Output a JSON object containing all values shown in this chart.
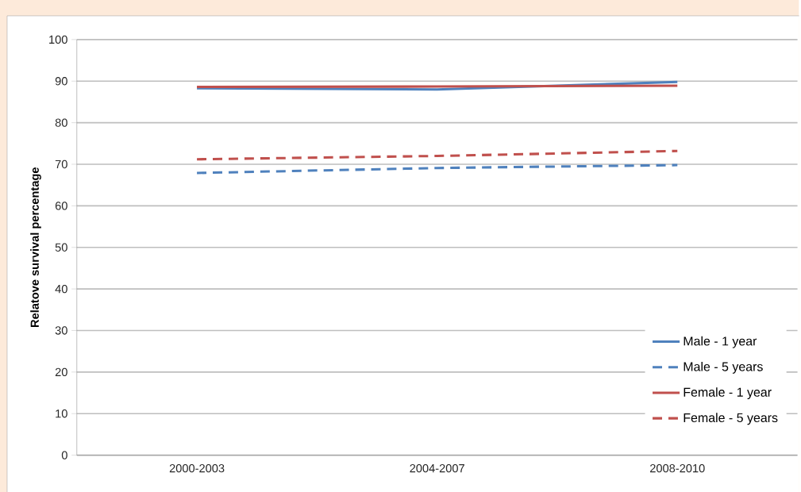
{
  "chart_data": {
    "type": "line",
    "ylabel": "Relatove survival percentage",
    "categories": [
      "2000-2003",
      "2004-2007",
      "2008-2010"
    ],
    "series": [
      {
        "name": "Male - 1 year",
        "color": "#4f81bd",
        "line_style": "solid",
        "values": [
          88.3,
          88.0,
          89.8
        ]
      },
      {
        "name": "Male - 5 years",
        "color": "#4f81bd",
        "line_style": "dashed",
        "values": [
          67.9,
          69.1,
          69.8
        ]
      },
      {
        "name": "Female - 1 year",
        "color": "#c0504d",
        "line_style": "solid",
        "values": [
          88.6,
          88.7,
          88.9
        ]
      },
      {
        "name": "Female - 5 years",
        "color": "#c0504d",
        "line_style": "dashed",
        "values": [
          71.2,
          72.0,
          73.2
        ]
      }
    ],
    "ylim": [
      0,
      100
    ],
    "yticks": [
      0,
      10,
      20,
      30,
      40,
      50,
      60,
      70,
      80,
      90,
      100
    ],
    "grid": "y",
    "legend": "bottom right",
    "marker": "none"
  }
}
